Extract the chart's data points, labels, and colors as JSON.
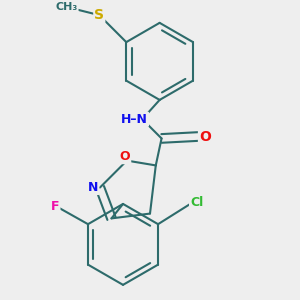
{
  "background_color": "#eeeeee",
  "bond_color": "#2d6b6b",
  "bond_width": 1.5,
  "atom_colors": {
    "N": "#1010ee",
    "O": "#ee1010",
    "S": "#ccaa00",
    "F": "#ee10aa",
    "Cl": "#33bb33",
    "H": "#888888",
    "C": "#2d6b6b"
  },
  "figsize": [
    3.0,
    3.0
  ],
  "dpi": 100
}
